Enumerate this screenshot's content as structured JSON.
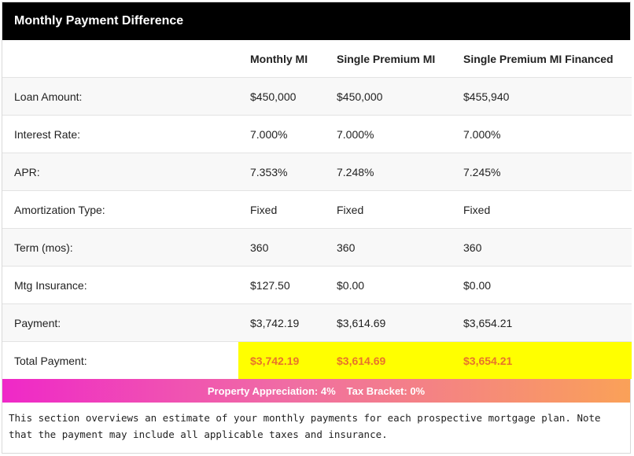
{
  "title": "Monthly Payment Difference",
  "columns": [
    "",
    "Monthly MI",
    "Single Premium MI",
    "Single Premium MI Financed"
  ],
  "rows": [
    {
      "label": "Loan Amount:",
      "values": [
        "$450,000",
        "$450,000",
        "$455,940"
      ]
    },
    {
      "label": "Interest Rate:",
      "values": [
        "7.000%",
        "7.000%",
        "7.000%"
      ]
    },
    {
      "label": "APR:",
      "values": [
        "7.353%",
        "7.248%",
        "7.245%"
      ]
    },
    {
      "label": "Amortization Type:",
      "values": [
        "Fixed",
        "Fixed",
        "Fixed"
      ]
    },
    {
      "label": "Term (mos):",
      "values": [
        "360",
        "360",
        "360"
      ]
    },
    {
      "label": "Mtg Insurance:",
      "values": [
        "$127.50",
        "$0.00",
        "$0.00"
      ]
    },
    {
      "label": "Payment:",
      "values": [
        "$3,742.19",
        "$3,614.69",
        "$3,654.21"
      ]
    }
  ],
  "total": {
    "label": "Total Payment:",
    "values": [
      "$3,742.19",
      "$3,614.69",
      "$3,654.21"
    ]
  },
  "banner": {
    "appreciation": "Property Appreciation: 4%",
    "bracket": "Tax Bracket: 0%"
  },
  "note": "This section overviews an estimate of your monthly payments for each prospective mortgage plan. Note that the payment may include all applicable taxes and insurance.",
  "colors": {
    "header_bg": "#000000",
    "highlight_bg": "#ffff00",
    "highlight_text": "#e8742a",
    "banner_start": "#ef28c8",
    "banner_end": "#faa158"
  }
}
